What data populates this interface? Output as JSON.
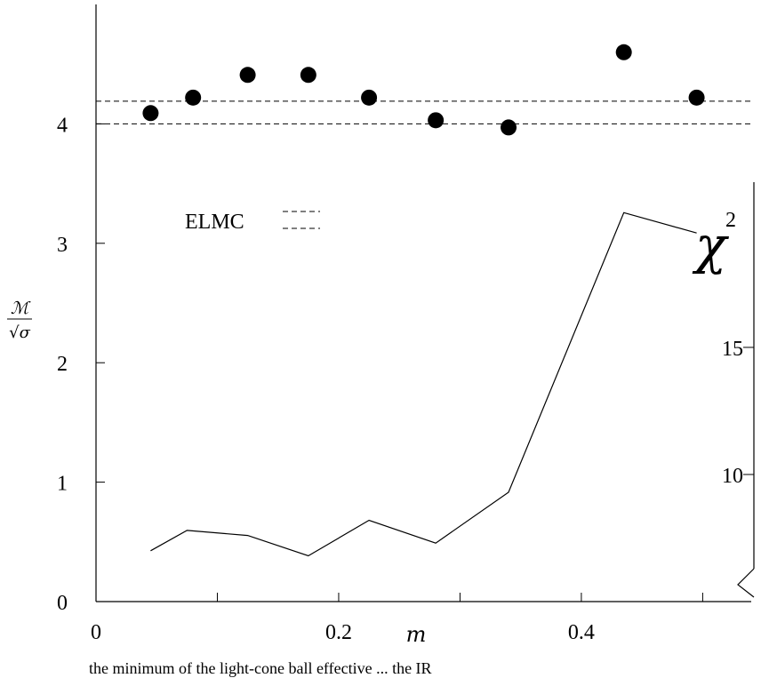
{
  "chart_data": {
    "type": "scatter",
    "xlabel": "m",
    "ylabel_html": "ℳ/√σ",
    "xlim": [
      0,
      0.54
    ],
    "ylim": [
      0,
      5
    ],
    "x_ticks": [
      0,
      0.2,
      0.4
    ],
    "x_tick_labels": [
      "0",
      "0.2",
      "0.4"
    ],
    "x_minor_ticks": [
      0.1,
      0.3,
      0.5
    ],
    "y_ticks": [
      0,
      1,
      2,
      3,
      4
    ],
    "y_tick_labels": [
      "0",
      "1",
      "2",
      "3",
      "4"
    ],
    "reference_lines": [
      4.0,
      4.19
    ],
    "legend": {
      "label": "ELMC",
      "position": "upper-left"
    },
    "series": [
      {
        "type": "scatter",
        "x": [
          0.045,
          0.08,
          0.125,
          0.175,
          0.225,
          0.28,
          0.34,
          0.435,
          0.495
        ],
        "y": [
          4.09,
          4.22,
          4.41,
          4.41,
          4.22,
          4.03,
          3.97,
          4.6,
          4.22
        ]
      },
      {
        "type": "line",
        "axis": "secondary",
        "x": [
          0.045,
          0.075,
          0.125,
          0.175,
          0.225,
          0.28,
          0.34,
          0.435,
          0.495
        ],
        "y": [
          7.0,
          7.8,
          7.6,
          6.8,
          8.2,
          7.3,
          9.3,
          20.3,
          19.5
        ]
      }
    ],
    "secondary_axis": {
      "label": "χ",
      "label_superscript": "2",
      "ylim": [
        5,
        21.5
      ],
      "ticks": [
        10,
        15
      ],
      "tick_labels": [
        "10",
        "15"
      ]
    }
  },
  "caption": "the minimum of the light-cone ball effective ... the IR"
}
